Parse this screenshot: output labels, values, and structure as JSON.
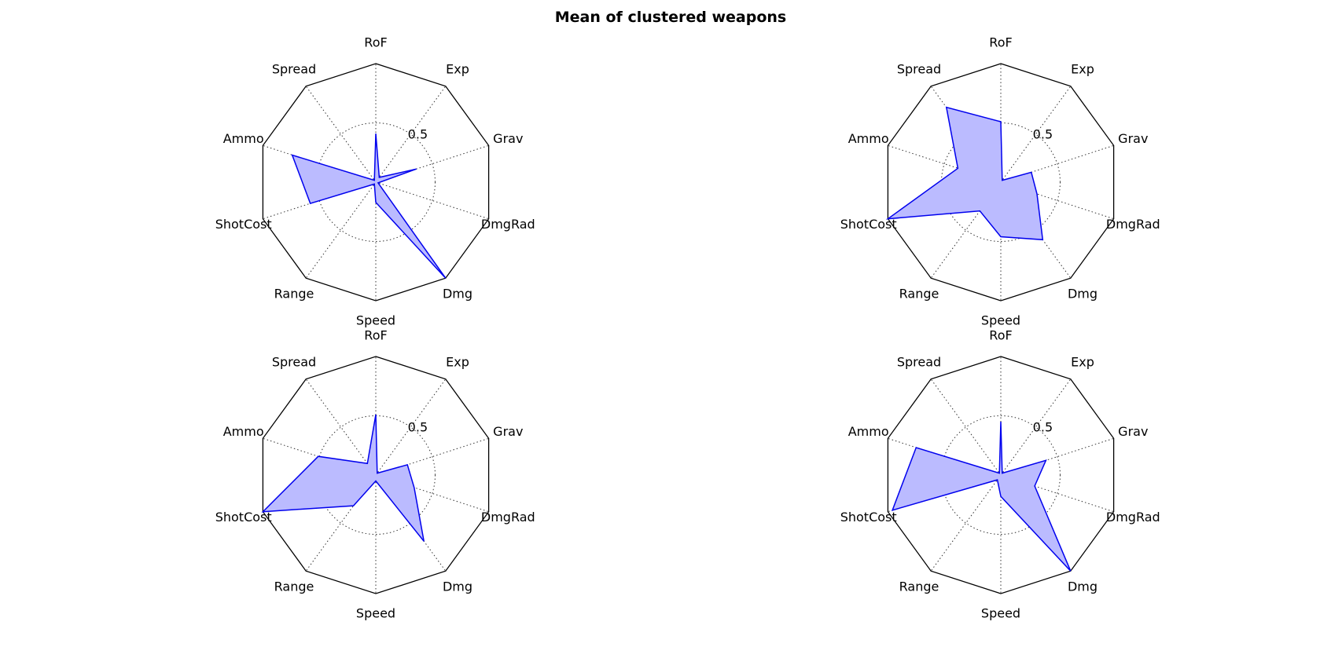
{
  "figure": {
    "title": "Mean of clustered weapons"
  },
  "chart_data": {
    "type": "radar",
    "axes": [
      "RoF",
      "Exp",
      "Grav",
      "DmgRad",
      "Dmg",
      "Speed",
      "Range",
      "ShotCost",
      "Ammo",
      "Spread"
    ],
    "rmax": 1.0,
    "rings": [
      0.5
    ],
    "ring_labels": [
      "0.5"
    ],
    "line_color": "#0000ee",
    "fill_color": "#bbbbff",
    "charts": [
      {
        "values": [
          0.41,
          0.05,
          0.36,
          0.02,
          1.0,
          0.17,
          0.02,
          0.58,
          0.74,
          0.02
        ]
      },
      {
        "values": [
          0.51,
          0.02,
          0.27,
          0.32,
          0.6,
          0.46,
          0.3,
          1.0,
          0.38,
          0.78
        ]
      },
      {
        "values": [
          0.51,
          0.02,
          0.28,
          0.34,
          0.69,
          0.05,
          0.32,
          1.0,
          0.51,
          0.12
        ]
      },
      {
        "values": [
          0.45,
          0.02,
          0.4,
          0.3,
          1.0,
          0.18,
          0.05,
          0.96,
          0.75,
          0.02
        ]
      }
    ]
  }
}
